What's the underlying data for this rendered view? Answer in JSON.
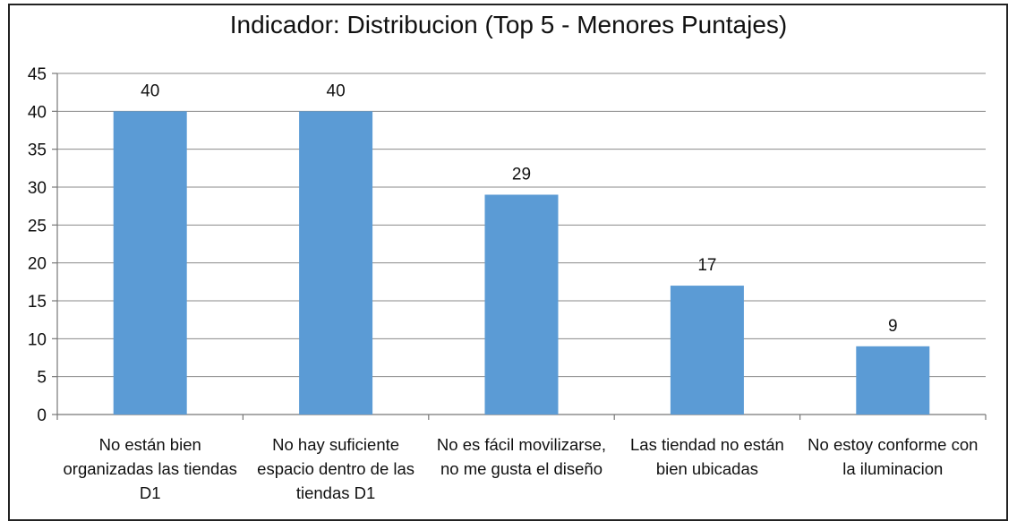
{
  "chart_data": {
    "type": "bar",
    "title": "Indicador: Distribucion (Top 5 - Menores Puntajes)",
    "xlabel": "",
    "ylabel": "",
    "categories": [
      [
        "No están bien",
        "organizadas las tiendas",
        "D1"
      ],
      [
        "No hay suficiente",
        "espacio dentro de las",
        "tiendas D1"
      ],
      [
        "No es fácil movilizarse,",
        "no me gusta el diseño"
      ],
      [
        "Las tiendad no están",
        "bien ubicadas"
      ],
      [
        "No estoy conforme con",
        "la iluminacion"
      ]
    ],
    "values": [
      40,
      40,
      29,
      17,
      9
    ],
    "ylim": [
      0,
      45
    ],
    "yticks": [
      0,
      5,
      10,
      15,
      20,
      25,
      30,
      35,
      40,
      45
    ],
    "grid": true,
    "legend": "none",
    "bar_color": "#5b9bd5"
  }
}
